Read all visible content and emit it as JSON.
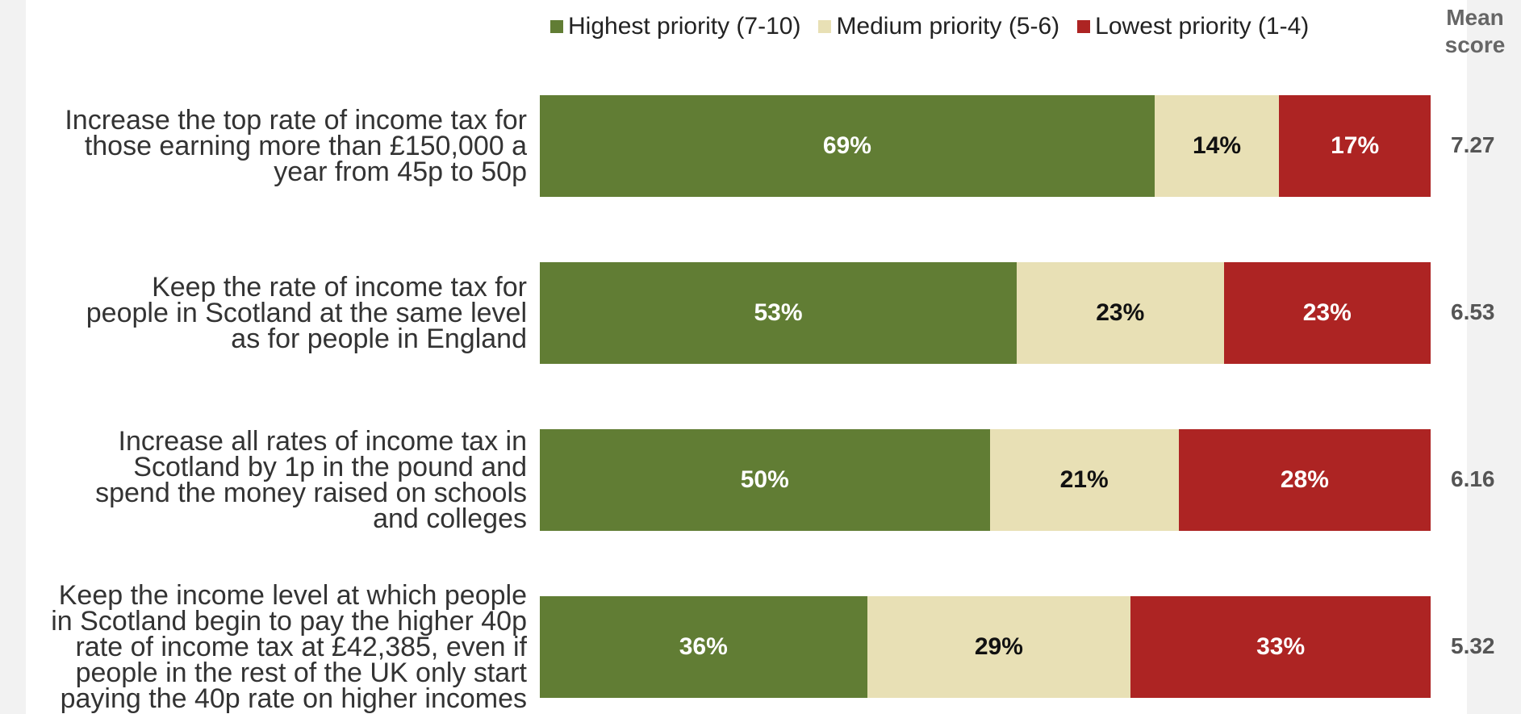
{
  "colors": {
    "highest": "#617d34",
    "medium": "#e8e0b5",
    "lowest": "#ad2423",
    "label_light": "#ffffff",
    "label_dark": "#111111"
  },
  "mean_header": "Mean\nscore",
  "chart_data": {
    "type": "bar",
    "orientation": "horizontal",
    "stacked": true,
    "legend_position": "top",
    "xlim": [
      0,
      100
    ],
    "unit": "%",
    "legend": [
      {
        "key": "highest",
        "label": "Highest priority (7-10)"
      },
      {
        "key": "medium",
        "label": "Medium priority (5-6)"
      },
      {
        "key": "lowest",
        "label": "Lowest priority (1-4)"
      }
    ],
    "categories": [
      "Increase the top rate of income tax for\nthose earning more than £150,000 a\nyear from 45p to 50p",
      "Keep the rate of income tax for\npeople in Scotland at the same level\nas for people in England",
      "Increase all rates of income tax in\nScotland by 1p in the pound and\nspend the money raised on schools\nand colleges",
      "Keep the income level at which people\nin Scotland begin to pay the higher 40p\nrate of income tax at £42,385, even if\npeople in the rest of the UK only start\npaying the 40p rate on higher incomes"
    ],
    "series": [
      {
        "key": "highest",
        "name": "Highest priority (7-10)",
        "values": [
          69,
          53,
          50,
          36
        ]
      },
      {
        "key": "medium",
        "name": "Medium priority (5-6)",
        "values": [
          14,
          23,
          21,
          29
        ]
      },
      {
        "key": "lowest",
        "name": "Lowest priority (1-4)",
        "values": [
          17,
          23,
          28,
          33
        ]
      }
    ],
    "mean_scores": [
      "7.27",
      "6.53",
      "6.16",
      "5.32"
    ]
  }
}
